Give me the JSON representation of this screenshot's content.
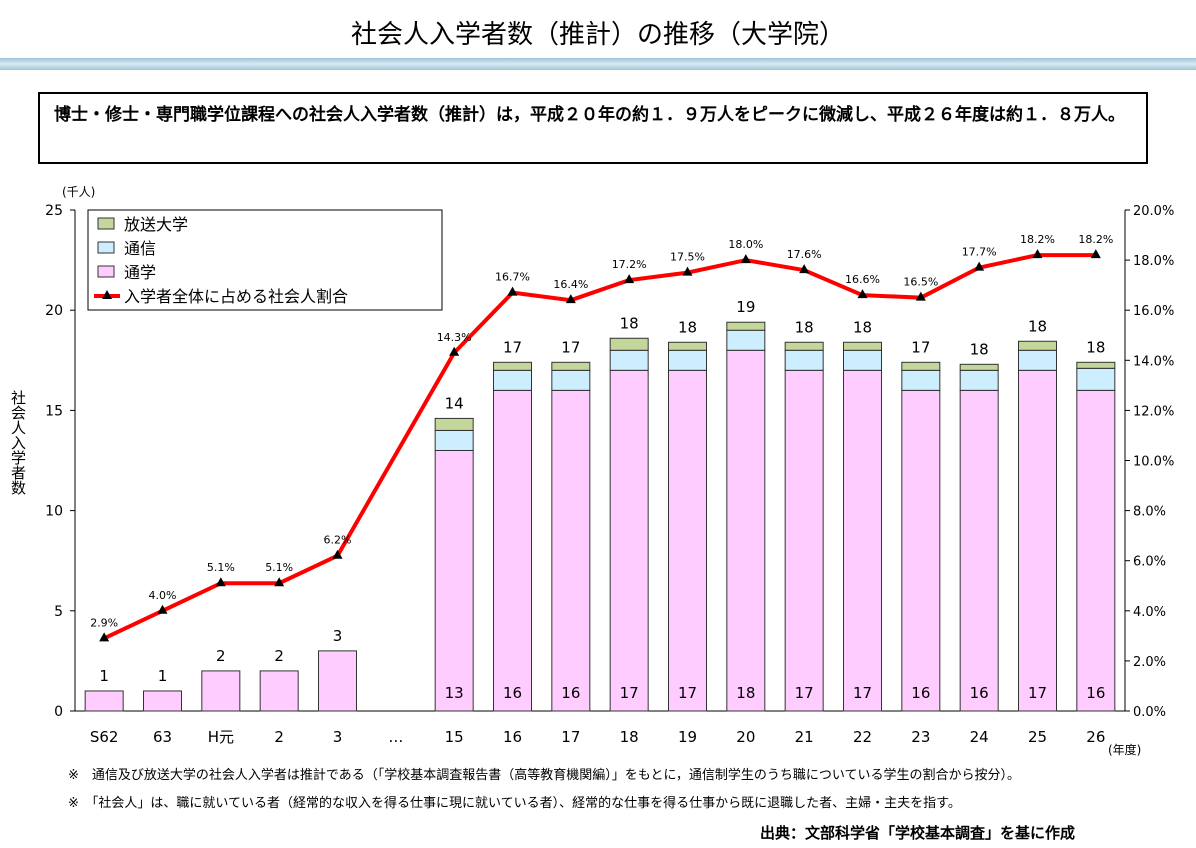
{
  "title": "社会人入学者数（推計）の推移（大学院）",
  "summary": "博士・修士・専門職学位課程への社会人入学者数（推計）は，平成２０年の約１．９万人をピークに微減し、平成２６年度は約１．８万人。",
  "notes": [
    "※　通信及び放送大学の社会人入学者は推計である（「学校基本調査報告書（高等教育機関編）」をもとに，通信制学生のうち職についている学生の割合から按分）。",
    "※　「社会人」は、職に就いている者（経常的な収入を得る仕事に現に就いている者）、経常的な仕事を得る仕事から既に退職した者、主婦・主夫を指す。"
  ],
  "source": "出典：文部科学省「学校基本調査」を基に作成",
  "chart_data": {
    "type": "bar+line",
    "categories": [
      "S62",
      "63",
      "H元",
      "2",
      "3",
      "…",
      "15",
      "16",
      "17",
      "18",
      "19",
      "20",
      "21",
      "22",
      "23",
      "24",
      "25",
      "26"
    ],
    "xunit": "(年度)",
    "ylabel": "社会人入学者数",
    "yunit": "(千人)",
    "ylim": [
      0,
      25
    ],
    "yticks": [
      "0",
      "5",
      "10",
      "15",
      "20",
      "25"
    ],
    "y2lim": [
      0,
      20
    ],
    "y2ticks": [
      "0.0%",
      "2.0%",
      "4.0%",
      "6.0%",
      "8.0%",
      "10.0%",
      "12.0%",
      "14.0%",
      "16.0%",
      "18.0%",
      "20.0%"
    ],
    "series": [
      {
        "name": "通学",
        "type": "bar",
        "color": "#ffccff",
        "values": [
          1,
          1,
          2,
          2,
          3,
          null,
          13,
          16,
          16,
          17,
          17,
          18,
          17,
          17,
          16,
          16,
          17,
          16
        ]
      },
      {
        "name": "通信",
        "type": "bar",
        "color": "#cceeff",
        "values": [
          0,
          0,
          0,
          0,
          0,
          null,
          1.0,
          1.0,
          1.0,
          1.0,
          1.0,
          1.0,
          1.0,
          1.0,
          1.0,
          1.0,
          1.0,
          1.1
        ]
      },
      {
        "name": "放送大学",
        "type": "bar",
        "color": "#c4d79b",
        "values": [
          0,
          0,
          0,
          0,
          0,
          null,
          0.6,
          0.4,
          0.4,
          0.6,
          0.4,
          0.4,
          0.4,
          0.4,
          0.4,
          0.3,
          0.45,
          0.3
        ]
      },
      {
        "name": "入学者全体に占める社会人割合",
        "type": "line",
        "axis": "right",
        "color": "#ff0000",
        "values": [
          2.9,
          4.0,
          5.1,
          5.1,
          6.2,
          null,
          14.3,
          16.7,
          16.4,
          17.2,
          17.5,
          18.0,
          17.6,
          16.6,
          16.5,
          17.7,
          18.2,
          18.2
        ]
      }
    ],
    "total_labels": [
      "1",
      "1",
      "2",
      "2",
      "3",
      "",
      "14",
      "17",
      "17",
      "18",
      "18",
      "19",
      "18",
      "18",
      "17",
      "18",
      "18",
      "18"
    ],
    "inner_labels": [
      "",
      "",
      "",
      "",
      "",
      "",
      "13",
      "16",
      "16",
      "17",
      "17",
      "18",
      "17",
      "17",
      "16",
      "16",
      "17",
      "16"
    ],
    "line_labels": [
      "2.9%",
      "4.0%",
      "5.1%",
      "5.1%",
      "6.2%",
      "",
      "14.3%",
      "16.7%",
      "16.4%",
      "17.2%",
      "17.5%",
      "18.0%",
      "17.6%",
      "16.6%",
      "16.5%",
      "17.7%",
      "18.2%",
      "18.2%"
    ],
    "legend": {
      "placement": "top-left",
      "items": [
        "放送大学",
        "通信",
        "通学",
        "入学者全体に占める社会人割合"
      ]
    }
  }
}
